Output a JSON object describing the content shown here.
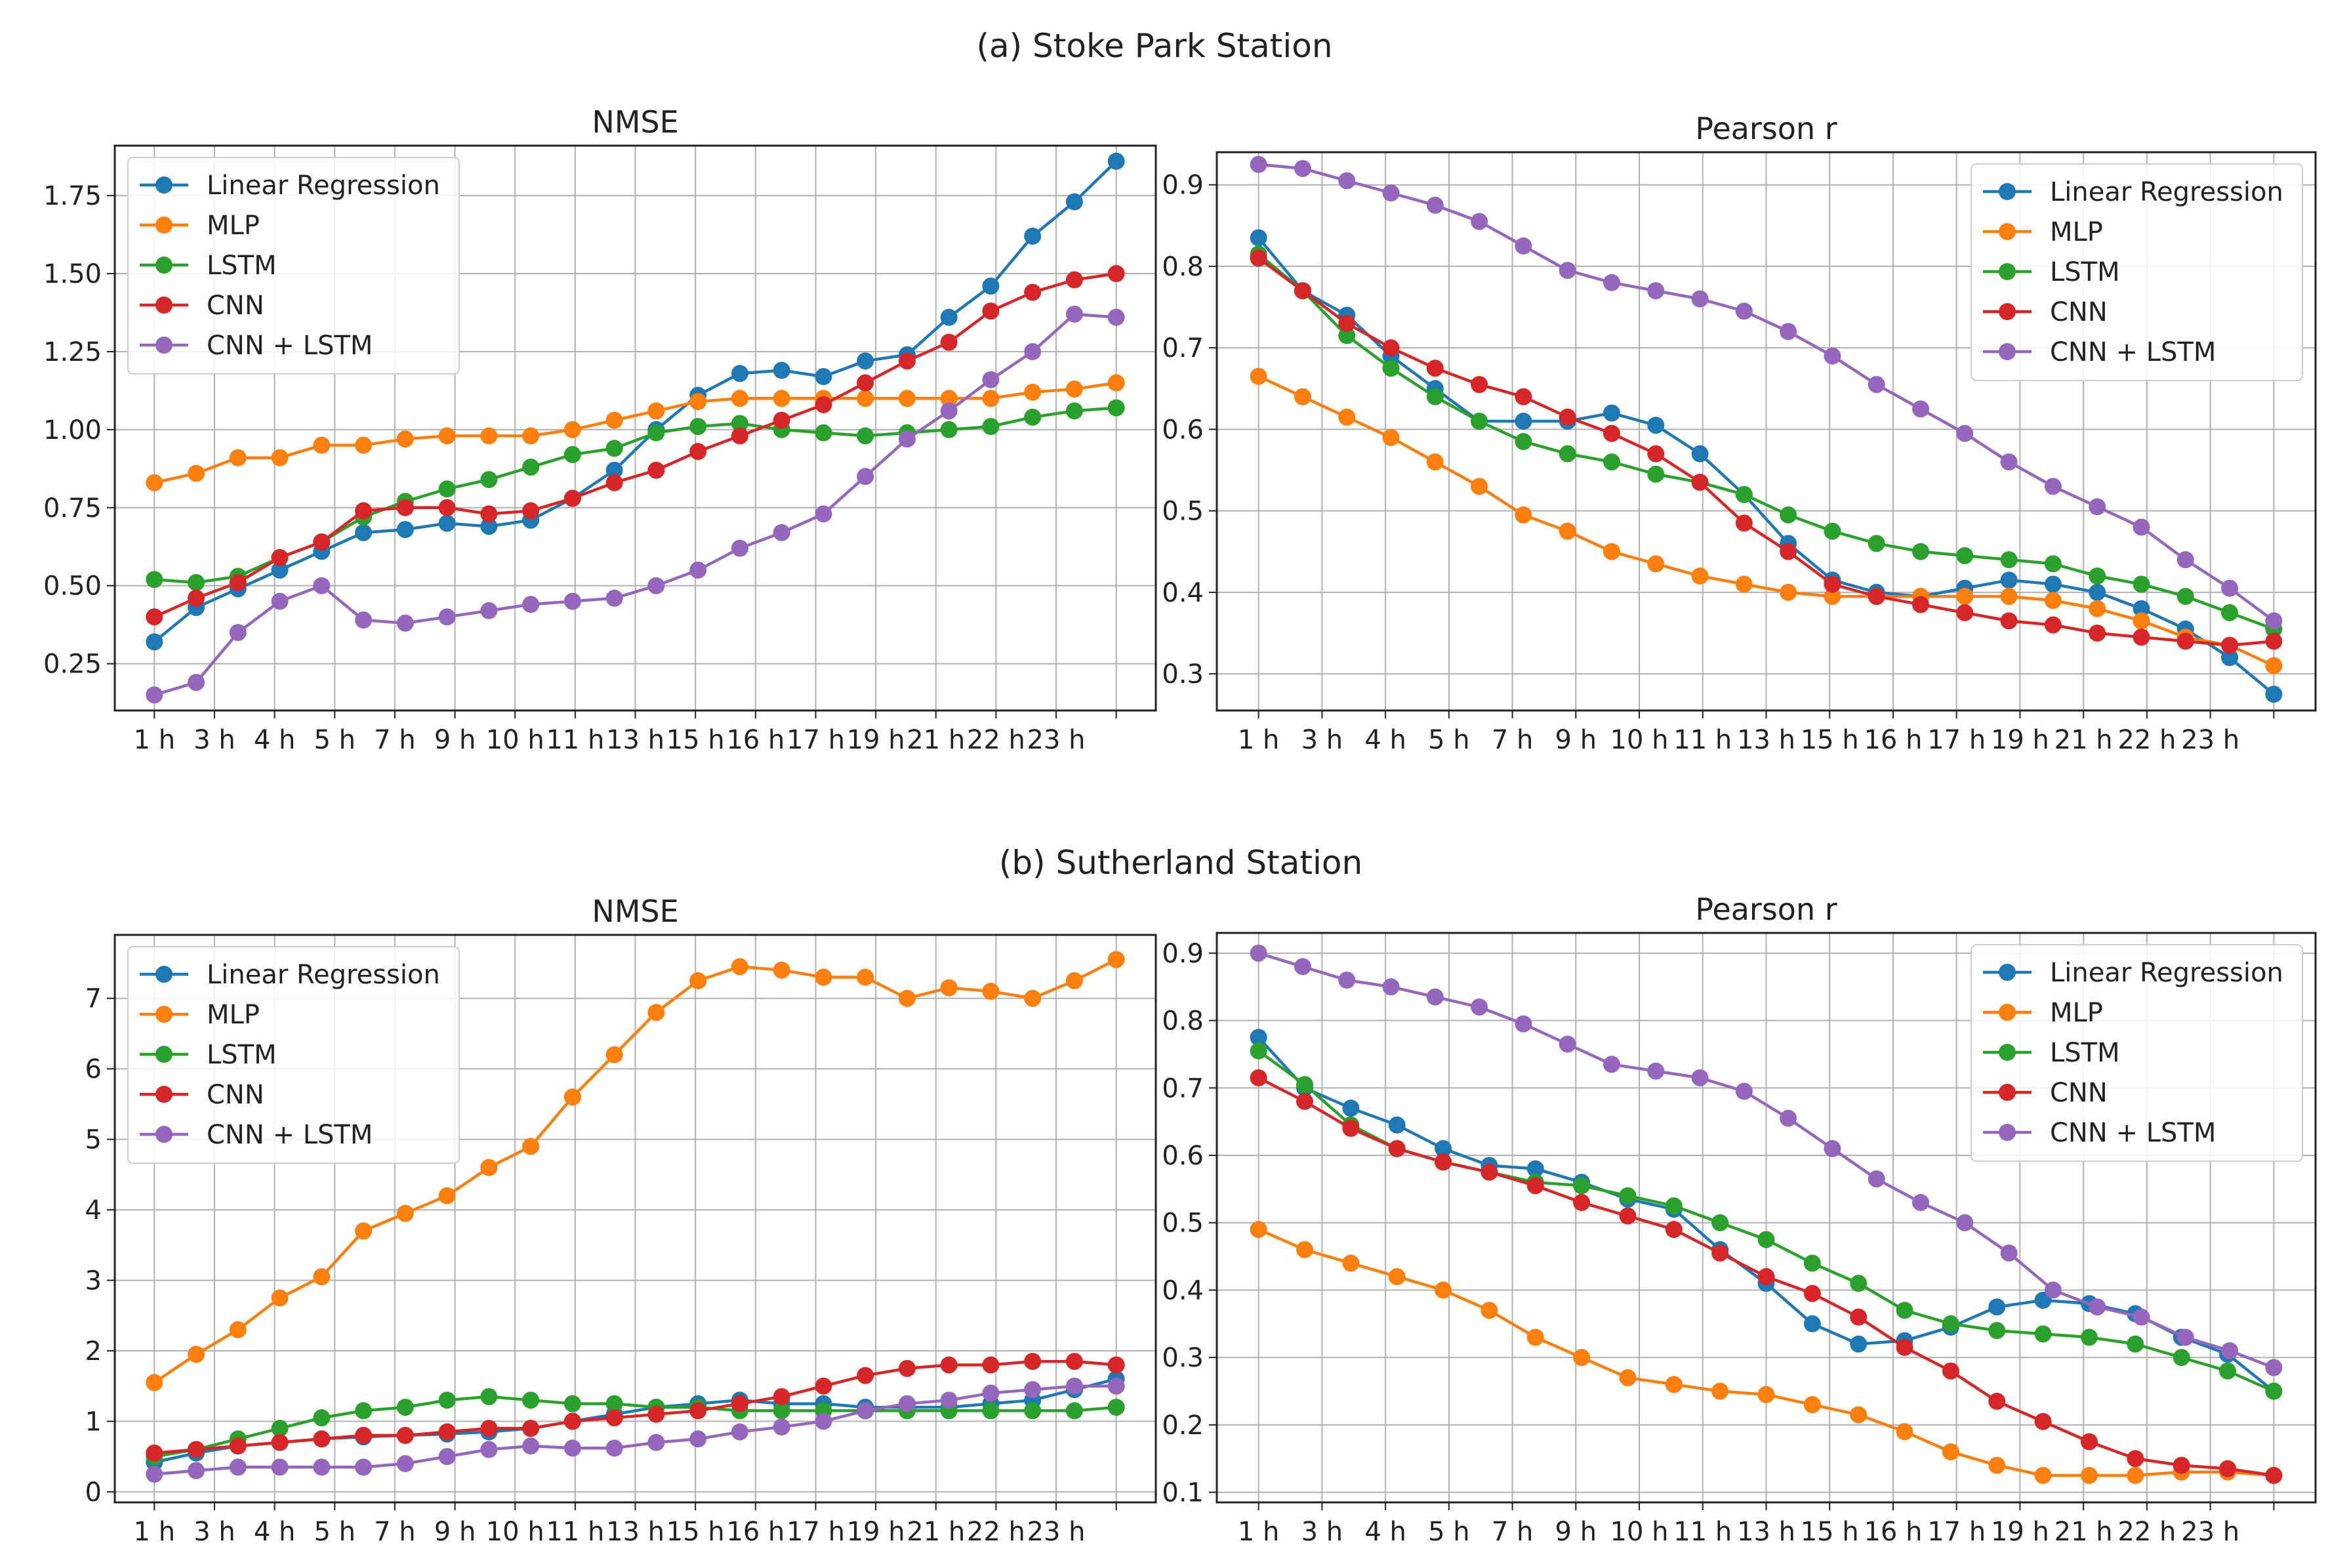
{
  "section_titles": [
    "(a) Stoke Park Station",
    "(b) Sutherland Station"
  ],
  "colors": {
    "Linear Regression": "#1f77b4",
    "MLP": "#ff7f0e",
    "LSTM": "#2ca02c",
    "CNN": "#d62728",
    "CNN + LSTM": "#9467bd"
  },
  "chart_data": [
    {
      "type": "line",
      "section": "(a) Stoke Park Station",
      "title": "NMSE",
      "xlabel": "",
      "ylabel": "",
      "x_tick_labels": [
        "1 h",
        "3 h",
        "4 h",
        "5 h",
        "7 h",
        "9 h",
        "10 h",
        "11 h",
        "13 h",
        "15 h",
        "16 h",
        "17 h",
        "19 h",
        "21 h",
        "22 h",
        "23 h"
      ],
      "ylim": [
        0.1,
        1.91
      ],
      "yticks": [
        0.25,
        0.5,
        0.75,
        1.0,
        1.25,
        1.5,
        1.75
      ],
      "ytick_labels": [
        "0.25",
        "0.50",
        "0.75",
        "1.00",
        "1.25",
        "1.50",
        "1.75"
      ],
      "legend": "top-left",
      "grid": true,
      "series": [
        {
          "name": "Linear Regression",
          "values": [
            0.32,
            0.43,
            0.49,
            0.55,
            0.61,
            0.67,
            0.68,
            0.7,
            0.69,
            0.71,
            0.78,
            0.87,
            1.0,
            1.11,
            1.18,
            1.19,
            1.17,
            1.22,
            1.24,
            1.36,
            1.46,
            1.62,
            1.73,
            1.86
          ]
        },
        {
          "name": "MLP",
          "values": [
            0.83,
            0.86,
            0.91,
            0.91,
            0.95,
            0.95,
            0.97,
            0.98,
            0.98,
            0.98,
            1.0,
            1.03,
            1.06,
            1.09,
            1.1,
            1.1,
            1.1,
            1.1,
            1.1,
            1.1,
            1.1,
            1.12,
            1.13,
            1.15
          ]
        },
        {
          "name": "LSTM",
          "values": [
            0.52,
            0.51,
            0.53,
            0.59,
            0.64,
            0.72,
            0.77,
            0.81,
            0.84,
            0.88,
            0.92,
            0.94,
            0.99,
            1.01,
            1.02,
            1.0,
            0.99,
            0.98,
            0.99,
            1.0,
            1.01,
            1.04,
            1.06,
            1.07
          ]
        },
        {
          "name": "CNN",
          "values": [
            0.4,
            0.46,
            0.51,
            0.59,
            0.64,
            0.74,
            0.75,
            0.75,
            0.73,
            0.74,
            0.78,
            0.83,
            0.87,
            0.93,
            0.98,
            1.03,
            1.08,
            1.15,
            1.22,
            1.28,
            1.38,
            1.44,
            1.48,
            1.5
          ]
        },
        {
          "name": "CNN + LSTM",
          "values": [
            0.15,
            0.19,
            0.35,
            0.45,
            0.5,
            0.39,
            0.38,
            0.4,
            0.42,
            0.44,
            0.45,
            0.46,
            0.5,
            0.55,
            0.62,
            0.67,
            0.73,
            0.85,
            0.97,
            1.06,
            1.16,
            1.25,
            1.37,
            1.36
          ]
        }
      ]
    },
    {
      "type": "line",
      "section": "(a) Stoke Park Station",
      "title": "Pearson r",
      "xlabel": "",
      "ylabel": "",
      "x_tick_labels": [
        "1 h",
        "3 h",
        "4 h",
        "5 h",
        "7 h",
        "9 h",
        "10 h",
        "11 h",
        "13 h",
        "15 h",
        "16 h",
        "17 h",
        "19 h",
        "21 h",
        "22 h",
        "23 h"
      ],
      "ylim": [
        0.255,
        0.94
      ],
      "yticks": [
        0.3,
        0.4,
        0.5,
        0.6,
        0.7,
        0.8,
        0.9
      ],
      "ytick_labels": [
        "0.3",
        "0.4",
        "0.5",
        "0.6",
        "0.7",
        "0.8",
        "0.9"
      ],
      "legend": "top-right",
      "grid": true,
      "series": [
        {
          "name": "Linear Regression",
          "values": [
            0.835,
            0.77,
            0.74,
            0.69,
            0.65,
            0.61,
            0.61,
            0.61,
            0.62,
            0.605,
            0.57,
            0.52,
            0.46,
            0.415,
            0.4,
            0.395,
            0.405,
            0.415,
            0.41,
            0.4,
            0.38,
            0.355,
            0.32,
            0.275
          ]
        },
        {
          "name": "MLP",
          "values": [
            0.665,
            0.64,
            0.615,
            0.59,
            0.56,
            0.53,
            0.495,
            0.475,
            0.45,
            0.435,
            0.42,
            0.41,
            0.4,
            0.395,
            0.395,
            0.395,
            0.395,
            0.395,
            0.39,
            0.38,
            0.365,
            0.345,
            0.335,
            0.31
          ]
        },
        {
          "name": "LSTM",
          "values": [
            0.815,
            0.77,
            0.715,
            0.675,
            0.64,
            0.61,
            0.585,
            0.57,
            0.56,
            0.545,
            0.535,
            0.52,
            0.495,
            0.475,
            0.46,
            0.45,
            0.445,
            0.44,
            0.435,
            0.42,
            0.41,
            0.395,
            0.375,
            0.355
          ]
        },
        {
          "name": "CNN",
          "values": [
            0.81,
            0.77,
            0.73,
            0.7,
            0.675,
            0.655,
            0.64,
            0.615,
            0.595,
            0.57,
            0.535,
            0.485,
            0.45,
            0.41,
            0.395,
            0.385,
            0.375,
            0.365,
            0.36,
            0.35,
            0.345,
            0.34,
            0.335,
            0.34
          ]
        },
        {
          "name": "CNN + LSTM",
          "values": [
            0.925,
            0.92,
            0.905,
            0.89,
            0.875,
            0.855,
            0.825,
            0.795,
            0.78,
            0.77,
            0.76,
            0.745,
            0.72,
            0.69,
            0.655,
            0.625,
            0.595,
            0.56,
            0.53,
            0.505,
            0.48,
            0.44,
            0.405,
            0.365
          ]
        }
      ]
    },
    {
      "type": "line",
      "section": "(b) Sutherland Station",
      "title": "NMSE",
      "xlabel": "",
      "ylabel": "",
      "x_tick_labels": [
        "1 h",
        "3 h",
        "4 h",
        "5 h",
        "7 h",
        "9 h",
        "10 h",
        "11 h",
        "13 h",
        "15 h",
        "16 h",
        "17 h",
        "19 h",
        "21 h",
        "22 h",
        "23 h"
      ],
      "ylim": [
        -0.15,
        7.9
      ],
      "yticks": [
        0,
        1,
        2,
        3,
        4,
        5,
        6,
        7
      ],
      "ytick_labels": [
        "0",
        "1",
        "2",
        "3",
        "4",
        "5",
        "6",
        "7"
      ],
      "legend": "top-left",
      "grid": true,
      "series": [
        {
          "name": "Linear Regression",
          "values": [
            0.42,
            0.55,
            0.65,
            0.7,
            0.75,
            0.78,
            0.8,
            0.82,
            0.85,
            0.9,
            1.0,
            1.1,
            1.2,
            1.25,
            1.3,
            1.25,
            1.25,
            1.2,
            1.2,
            1.2,
            1.25,
            1.3,
            1.45,
            1.6
          ]
        },
        {
          "name": "MLP",
          "values": [
            1.55,
            1.95,
            2.3,
            2.75,
            3.05,
            3.7,
            3.95,
            4.2,
            4.6,
            4.9,
            5.6,
            6.2,
            6.8,
            7.25,
            7.45,
            7.4,
            7.3,
            7.3,
            7.0,
            7.15,
            7.1,
            7.0,
            7.25,
            7.55
          ]
        },
        {
          "name": "LSTM",
          "values": [
            0.5,
            0.6,
            0.75,
            0.9,
            1.05,
            1.15,
            1.2,
            1.3,
            1.35,
            1.3,
            1.25,
            1.25,
            1.2,
            1.2,
            1.15,
            1.15,
            1.15,
            1.15,
            1.15,
            1.15,
            1.15,
            1.15,
            1.15,
            1.2
          ]
        },
        {
          "name": "CNN",
          "values": [
            0.55,
            0.6,
            0.65,
            0.7,
            0.75,
            0.8,
            0.8,
            0.85,
            0.9,
            0.9,
            1.0,
            1.05,
            1.1,
            1.15,
            1.25,
            1.35,
            1.5,
            1.65,
            1.75,
            1.8,
            1.8,
            1.85,
            1.85,
            1.8
          ]
        },
        {
          "name": "CNN + LSTM",
          "values": [
            0.25,
            0.3,
            0.35,
            0.35,
            0.35,
            0.35,
            0.4,
            0.5,
            0.6,
            0.65,
            0.62,
            0.62,
            0.7,
            0.75,
            0.85,
            0.92,
            1.0,
            1.15,
            1.25,
            1.3,
            1.4,
            1.45,
            1.5,
            1.5
          ]
        }
      ]
    },
    {
      "type": "line",
      "section": "(b) Sutherland Station",
      "title": "Pearson r",
      "xlabel": "",
      "ylabel": "",
      "x_tick_labels": [
        "1 h",
        "3 h",
        "4 h",
        "5 h",
        "7 h",
        "9 h",
        "10 h",
        "11 h",
        "13 h",
        "15 h",
        "16 h",
        "17 h",
        "19 h",
        "21 h",
        "22 h",
        "23 h"
      ],
      "ylim": [
        0.085,
        0.93
      ],
      "yticks": [
        0.1,
        0.2,
        0.3,
        0.4,
        0.5,
        0.6,
        0.7,
        0.8,
        0.9
      ],
      "ytick_labels": [
        "0.1",
        "0.2",
        "0.3",
        "0.4",
        "0.5",
        "0.6",
        "0.7",
        "0.8",
        "0.9"
      ],
      "legend": "top-right",
      "grid": true,
      "series": [
        {
          "name": "Linear Regression",
          "values": [
            0.775,
            0.7,
            0.67,
            0.645,
            0.61,
            0.585,
            0.58,
            0.56,
            0.535,
            0.52,
            0.46,
            0.41,
            0.35,
            0.32,
            0.325,
            0.345,
            0.375,
            0.385,
            0.38,
            0.365,
            0.33,
            0.305,
            0.25
          ]
        },
        {
          "name": "MLP",
          "values": [
            0.49,
            0.46,
            0.44,
            0.42,
            0.4,
            0.37,
            0.33,
            0.3,
            0.27,
            0.26,
            0.25,
            0.245,
            0.23,
            0.215,
            0.19,
            0.16,
            0.14,
            0.125,
            0.125,
            0.125,
            0.13,
            0.13,
            0.125
          ]
        },
        {
          "name": "LSTM",
          "values": [
            0.755,
            0.705,
            0.645,
            0.61,
            0.59,
            0.575,
            0.56,
            0.555,
            0.54,
            0.525,
            0.5,
            0.475,
            0.44,
            0.41,
            0.37,
            0.35,
            0.34,
            0.335,
            0.33,
            0.32,
            0.3,
            0.28,
            0.25
          ]
        },
        {
          "name": "CNN",
          "values": [
            0.715,
            0.68,
            0.64,
            0.61,
            0.59,
            0.575,
            0.555,
            0.53,
            0.51,
            0.49,
            0.455,
            0.42,
            0.395,
            0.36,
            0.315,
            0.28,
            0.235,
            0.205,
            0.175,
            0.15,
            0.14,
            0.135,
            0.125
          ]
        },
        {
          "name": "CNN + LSTM",
          "values": [
            0.9,
            0.88,
            0.86,
            0.85,
            0.835,
            0.82,
            0.795,
            0.765,
            0.735,
            0.725,
            0.715,
            0.695,
            0.655,
            0.61,
            0.565,
            0.53,
            0.5,
            0.455,
            0.4,
            0.375,
            0.36,
            0.33,
            0.31,
            0.285
          ]
        }
      ]
    }
  ]
}
